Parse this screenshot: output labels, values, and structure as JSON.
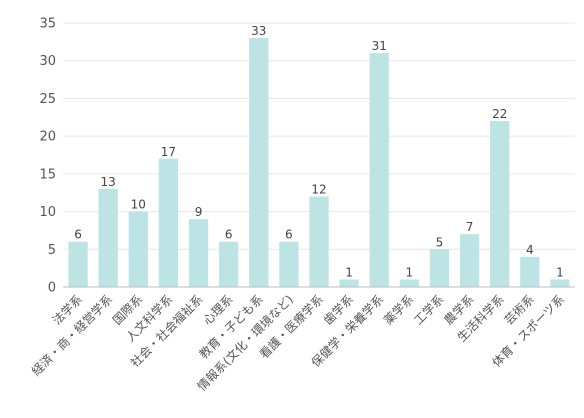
{
  "chart_data": {
    "type": "bar",
    "categories": [
      "法学系",
      "経済・商・経営学系",
      "国際系",
      "人文科学系",
      "社会・社会福祉系",
      "心理系",
      "教育・子ども系",
      "情報系(文化・環境など)",
      "看護・医療学系",
      "歯学系",
      "保健学・栄養学系",
      "薬学系",
      "工学系",
      "農学系",
      "生活科学系",
      "芸術系",
      "体育・スポーツ系"
    ],
    "values": [
      6,
      13,
      10,
      17,
      9,
      6,
      33,
      6,
      12,
      1,
      31,
      1,
      5,
      7,
      22,
      4,
      1
    ],
    "ylim": [
      0,
      35
    ],
    "yticks": [
      0,
      5,
      10,
      15,
      20,
      25,
      30,
      35
    ],
    "bar_color": "#bde3e4",
    "grid": true
  }
}
